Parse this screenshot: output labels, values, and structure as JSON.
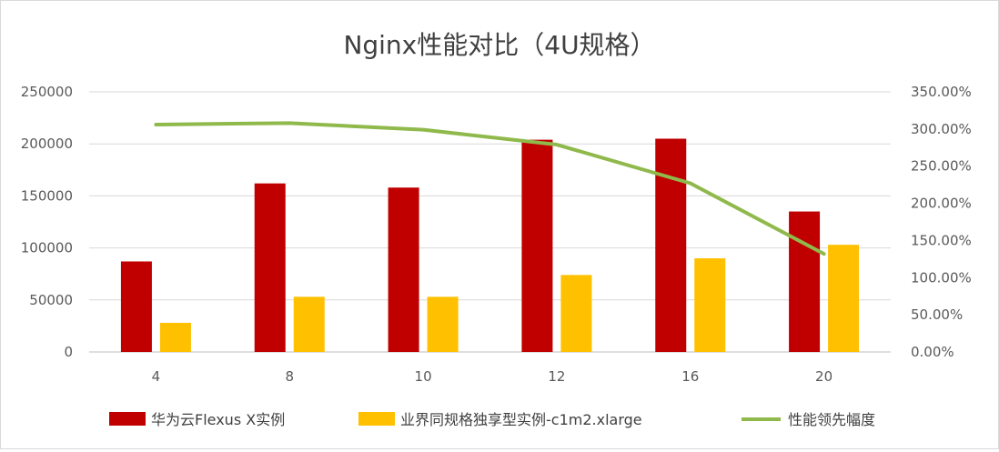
{
  "chart_data": {
    "type": "bar",
    "title": "Nginx性能对比（4U规格）",
    "categories": [
      "4",
      "8",
      "10",
      "12",
      "16",
      "20"
    ],
    "series": [
      {
        "name": "华为云Flexus X实例",
        "type": "bar",
        "axis": "left",
        "color": "#C00000",
        "values": [
          87000,
          162000,
          158000,
          204000,
          205000,
          135000
        ]
      },
      {
        "name": "业界同规格独享型实例-c1m2.xlarge",
        "type": "bar",
        "axis": "left",
        "color": "#FFC000",
        "values": [
          28000,
          53000,
          53000,
          74000,
          90000,
          103000
        ]
      },
      {
        "name": "性能领先幅度",
        "type": "line",
        "axis": "right",
        "color": "#8FB94B",
        "values": [
          3.06,
          3.08,
          2.99,
          2.79,
          2.27,
          1.32
        ]
      }
    ],
    "y_left": {
      "range": [
        0,
        250000
      ],
      "ticks": [
        0,
        50000,
        100000,
        150000,
        200000,
        250000
      ],
      "tick_labels": [
        "0",
        "50000",
        "100000",
        "150000",
        "200000",
        "250000"
      ]
    },
    "y_right": {
      "range": [
        0,
        3.5
      ],
      "ticks": [
        0,
        0.5,
        1.0,
        1.5,
        2.0,
        2.5,
        3.0,
        3.5
      ],
      "tick_labels": [
        "0.00%",
        "50.00%",
        "100.00%",
        "150.00%",
        "200.00%",
        "250.00%",
        "300.00%",
        "350.00%"
      ]
    },
    "grid": true,
    "legend_position": "bottom"
  }
}
